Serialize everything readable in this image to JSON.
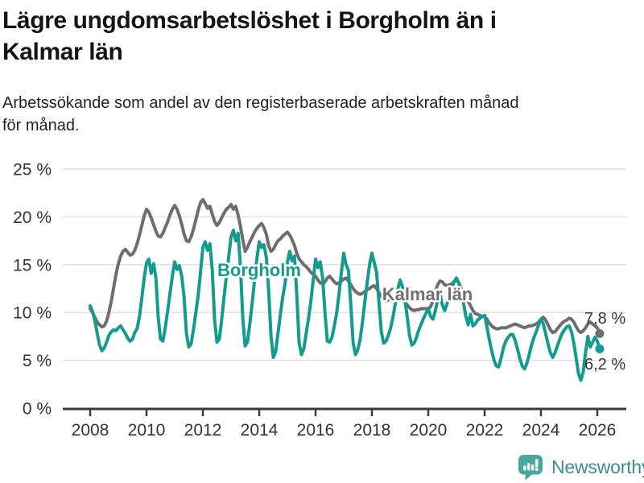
{
  "header": {
    "title_line1": "Lägre ungdomsarbetslöshet i Borgholm än i",
    "title_line2": "Kalmar län",
    "subtitle_line1": "Arbetssökande som andel av den registerbaserade arbetskraften månad",
    "subtitle_line2": "för månad."
  },
  "chart_data": {
    "type": "line",
    "title": "Lägre ungdomsarbetslöshet i Borgholm än i Kalmar län",
    "subtitle": "Arbetssökande som andel av den registerbaserade arbetskraften månad för månad.",
    "unit": "%",
    "frequency": "monthly",
    "x_start": "2008-01",
    "x_end": "2026-02",
    "xlabel": "",
    "ylabel": "",
    "ylim": [
      0,
      25
    ],
    "grid": true,
    "legend": "inline-labels",
    "x_tick_labels": [
      "2008",
      "2010",
      "2012",
      "2014",
      "2016",
      "2018",
      "2020",
      "2022",
      "2024",
      "2026"
    ],
    "x_tick_years": [
      2008,
      2010,
      2012,
      2014,
      2016,
      2018,
      2020,
      2022,
      2024,
      2026
    ],
    "y_tick_labels": [
      "0 %",
      "5 %",
      "10 %",
      "15 %",
      "20 %",
      "25 %"
    ],
    "y_tick_values": [
      0,
      5,
      10,
      15,
      20,
      25
    ],
    "series": [
      {
        "name": "Kalmar län",
        "color": "#6e6e6e",
        "end_label": "7,8 %",
        "end_value": 7.8,
        "values": [
          10.4,
          10.0,
          9.5,
          9.0,
          8.7,
          8.5,
          8.6,
          9.1,
          10.0,
          11.2,
          12.6,
          14.0,
          15.1,
          15.9,
          16.4,
          16.6,
          16.3,
          16.0,
          16.1,
          16.5,
          17.2,
          18.1,
          19.1,
          20.1,
          20.8,
          20.5,
          19.9,
          19.2,
          18.5,
          18.0,
          17.9,
          18.3,
          18.9,
          19.5,
          20.2,
          20.8,
          21.2,
          20.8,
          20.1,
          19.2,
          18.2,
          17.5,
          17.4,
          17.9,
          18.7,
          19.7,
          20.7,
          21.5,
          21.8,
          21.4,
          20.9,
          21.1,
          20.3,
          19.5,
          19.1,
          19.4,
          19.9,
          20.4,
          20.8,
          21.0,
          21.3,
          20.8,
          21.1,
          20.2,
          19.0,
          17.6,
          16.4,
          16.8,
          17.4,
          17.9,
          18.4,
          18.8,
          19.1,
          19.3,
          18.9,
          18.2,
          17.0,
          16.4,
          16.6,
          17.1,
          17.5,
          17.7,
          18.0,
          18.2,
          18.4,
          18.1,
          17.6,
          17.0,
          16.2,
          15.6,
          15.3,
          15.0,
          14.8,
          14.5,
          14.2,
          14.0,
          13.8,
          13.4,
          13.1,
          13.0,
          13.2,
          13.6,
          13.8,
          13.5,
          13.2,
          13.0,
          13.1,
          13.3,
          13.5,
          13.6,
          13.3,
          12.9,
          12.5,
          12.2,
          12.0,
          11.9,
          12.0,
          12.2,
          12.4,
          12.5,
          12.7,
          12.8,
          12.5,
          12.1,
          11.7,
          11.4,
          11.2,
          11.3,
          11.4,
          11.5,
          11.5,
          11.6,
          11.6,
          11.4,
          11.1,
          10.8,
          10.5,
          10.3,
          10.2,
          10.3,
          10.3,
          10.4,
          10.4,
          10.4,
          10.4,
          10.6,
          11.2,
          12.2,
          12.9,
          13.3,
          13.2,
          12.9,
          12.8,
          12.9,
          13.0,
          13.2,
          13.4,
          13.1,
          12.5,
          12.0,
          11.6,
          11.2,
          10.7,
          10.2,
          9.9,
          9.8,
          9.7,
          9.6,
          9.6,
          9.3,
          8.9,
          8.6,
          8.4,
          8.3,
          8.3,
          8.4,
          8.4,
          8.4,
          8.5,
          8.6,
          8.7,
          8.8,
          8.7,
          8.6,
          8.5,
          8.4,
          8.5,
          8.6,
          8.6,
          8.7,
          8.8,
          9.0,
          9.3,
          9.5,
          9.2,
          8.7,
          8.2,
          7.9,
          8.0,
          8.3,
          8.6,
          8.9,
          9.1,
          9.2,
          9.4,
          9.3,
          9.0,
          8.5,
          8.1,
          7.9,
          8.1,
          8.4,
          8.8,
          9.0,
          8.8,
          8.6,
          8.4,
          7.8
        ]
      },
      {
        "name": "Borgholm",
        "color": "#149b8f",
        "end_label": "6,2 %",
        "end_value": 6.2,
        "values": [
          10.7,
          10.1,
          9.2,
          7.8,
          6.6,
          6.0,
          6.3,
          6.9,
          7.6,
          8.0,
          8.2,
          8.1,
          8.4,
          8.6,
          8.2,
          7.8,
          7.3,
          7.0,
          7.2,
          7.9,
          8.3,
          9.6,
          11.5,
          13.6,
          15.2,
          15.6,
          14.1,
          15.1,
          13.6,
          9.4,
          7.2,
          7.0,
          8.4,
          10.2,
          12.0,
          13.8,
          15.3,
          14.5,
          14.9,
          13.8,
          11.6,
          7.8,
          6.4,
          6.7,
          8.2,
          10.0,
          11.8,
          14.2,
          16.8,
          17.4,
          16.5,
          17.2,
          14.4,
          9.2,
          6.9,
          7.2,
          9.2,
          11.6,
          13.8,
          15.8,
          17.9,
          18.6,
          17.5,
          18.3,
          14.8,
          9.4,
          6.5,
          6.9,
          8.8,
          11.0,
          13.4,
          15.6,
          17.4,
          16.8,
          17.1,
          15.8,
          12.4,
          7.6,
          5.3,
          5.9,
          7.8,
          9.8,
          11.6,
          13.0,
          15.2,
          16.4,
          15.4,
          15.9,
          11.8,
          6.8,
          5.6,
          6.2,
          7.8,
          9.4,
          11.2,
          13.4,
          15.6,
          14.7,
          15.3,
          13.6,
          10.0,
          7.0,
          6.9,
          7.4,
          8.6,
          10.0,
          12.0,
          14.2,
          16.2,
          15.0,
          14.4,
          10.8,
          6.8,
          5.6,
          6.1,
          7.2,
          9.0,
          11.2,
          13.2,
          15.0,
          16.2,
          15.2,
          14.2,
          11.0,
          8.0,
          6.8,
          7.0,
          7.6,
          8.4,
          9.6,
          11.0,
          12.4,
          13.4,
          12.7,
          11.4,
          9.6,
          7.6,
          6.6,
          6.8,
          7.4,
          8.2,
          8.8,
          9.4,
          9.9,
          10.4,
          9.6,
          9.3,
          10.2,
          11.3,
          11.9,
          10.8,
          10.2,
          10.9,
          11.6,
          12.4,
          13.2,
          13.6,
          13.1,
          12.2,
          11.0,
          9.6,
          8.7,
          9.8,
          8.6,
          8.8,
          9.2,
          9.4,
          9.6,
          9.7,
          8.5,
          7.2,
          6.0,
          5.0,
          4.4,
          4.3,
          5.2,
          6.3,
          7.0,
          7.4,
          7.7,
          7.7,
          7.1,
          6.2,
          5.2,
          4.4,
          4.1,
          4.7,
          5.6,
          6.6,
          7.4,
          8.0,
          8.7,
          9.3,
          8.8,
          7.8,
          6.7,
          5.8,
          5.3,
          5.8,
          6.5,
          7.2,
          7.8,
          8.2,
          8.5,
          8.6,
          8.0,
          6.8,
          5.2,
          3.6,
          2.9,
          3.8,
          5.8,
          7.5,
          6.4,
          6.9,
          7.4,
          7.0,
          6.2
        ]
      }
    ]
  },
  "footer": {
    "brand": "Newsworthy"
  },
  "colors": {
    "accent_teal": "#149b8f",
    "series_gray": "#6e6e6e",
    "axis": "#3a3a3a",
    "grid": "#e1e1e1",
    "text": "#333333",
    "brand_text": "#3f8d89",
    "brand_icon": "#4ba79e"
  }
}
